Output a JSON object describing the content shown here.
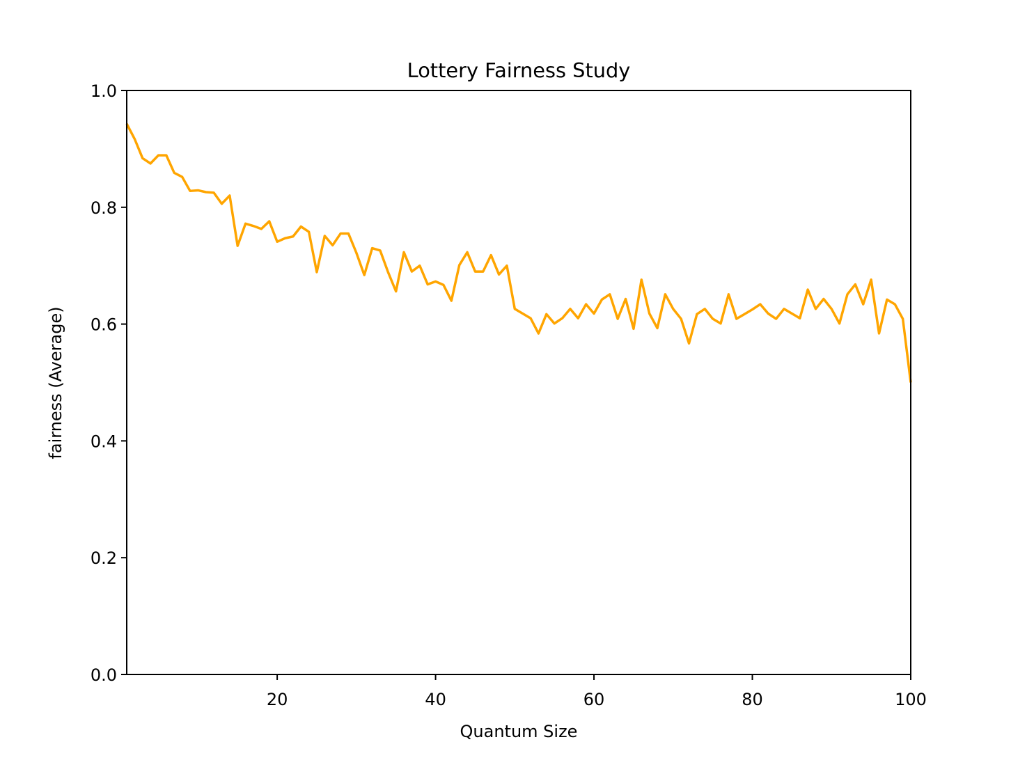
{
  "chart_data": {
    "type": "line",
    "title": "Lottery Fairness Study",
    "xlabel": "Quantum Size",
    "ylabel": "fairness (Average)",
    "xlim": [
      1,
      100
    ],
    "ylim": [
      0.0,
      1.0
    ],
    "xticks": [
      20,
      40,
      60,
      80,
      100
    ],
    "yticks": [
      0.0,
      0.2,
      0.4,
      0.6,
      0.8,
      1.0
    ],
    "xtick_labels": [
      "20",
      "40",
      "60",
      "80",
      "100"
    ],
    "ytick_labels": [
      "0.0",
      "0.2",
      "0.4",
      "0.6",
      "0.8",
      "1.0"
    ],
    "grid": false,
    "series": [
      {
        "color": "#ffa500",
        "x": [
          1,
          2,
          3,
          4,
          5,
          6,
          7,
          8,
          9,
          10,
          11,
          12,
          13,
          14,
          15,
          16,
          17,
          18,
          19,
          20,
          21,
          22,
          23,
          24,
          25,
          26,
          27,
          28,
          29,
          30,
          31,
          32,
          33,
          34,
          35,
          36,
          37,
          38,
          39,
          40,
          41,
          42,
          43,
          44,
          45,
          46,
          47,
          48,
          49,
          50,
          51,
          52,
          53,
          54,
          55,
          56,
          57,
          58,
          59,
          60,
          61,
          62,
          63,
          64,
          65,
          66,
          67,
          68,
          69,
          70,
          71,
          72,
          73,
          74,
          75,
          76,
          77,
          78,
          79,
          80,
          81,
          82,
          83,
          84,
          85,
          86,
          87,
          88,
          89,
          90,
          91,
          92,
          93,
          94,
          95,
          96,
          97,
          98,
          99,
          100
        ],
        "values": [
          0.943,
          0.917,
          0.884,
          0.875,
          0.889,
          0.889,
          0.859,
          0.852,
          0.828,
          0.829,
          0.826,
          0.825,
          0.806,
          0.82,
          0.734,
          0.772,
          0.768,
          0.763,
          0.776,
          0.741,
          0.747,
          0.75,
          0.767,
          0.758,
          0.689,
          0.751,
          0.735,
          0.755,
          0.755,
          0.722,
          0.684,
          0.73,
          0.726,
          0.689,
          0.656,
          0.723,
          0.69,
          0.7,
          0.668,
          0.673,
          0.667,
          0.64,
          0.701,
          0.723,
          0.69,
          0.69,
          0.718,
          0.685,
          0.7,
          0.626,
          0.618,
          0.61,
          0.584,
          0.617,
          0.601,
          0.61,
          0.626,
          0.61,
          0.634,
          0.618,
          0.642,
          0.651,
          0.609,
          0.643,
          0.592,
          0.676,
          0.618,
          0.593,
          0.651,
          0.626,
          0.609,
          0.567,
          0.617,
          0.626,
          0.609,
          0.601,
          0.651,
          0.609,
          0.617,
          0.625,
          0.634,
          0.618,
          0.609,
          0.626,
          0.618,
          0.61,
          0.659,
          0.626,
          0.643,
          0.626,
          0.601,
          0.651,
          0.668,
          0.634,
          0.676,
          0.584,
          0.642,
          0.634,
          0.609,
          0.5
        ]
      }
    ]
  }
}
